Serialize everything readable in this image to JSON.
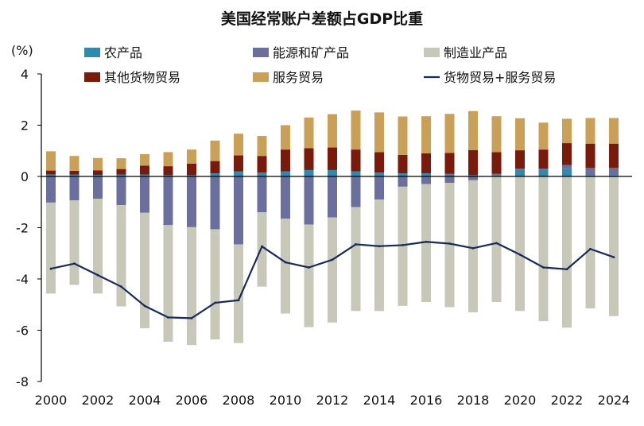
{
  "chart_data": {
    "type": "bar",
    "title": "美国经常账户差额占GDP比重",
    "ylabel": "(%)",
    "xlabel": "",
    "ylim": [
      -8,
      4
    ],
    "y_ticks": [
      "4",
      "2",
      "0",
      "-2",
      "-4",
      "-6",
      "-8"
    ],
    "y_tick_values": [
      4,
      2,
      0,
      -2,
      -4,
      -6,
      -8
    ],
    "x_tick_labels": [
      "2000",
      "2002",
      "2004",
      "2006",
      "2008",
      "2010",
      "2012",
      "2014",
      "2016",
      "2018",
      "2020",
      "2022",
      "2024"
    ],
    "grid": false,
    "legend_position": "top",
    "categories": [
      "2000",
      "2001",
      "2002",
      "2003",
      "2004",
      "2005",
      "2006",
      "2007",
      "2008",
      "2009",
      "2010",
      "2011",
      "2012",
      "2013",
      "2014",
      "2015",
      "2016",
      "2017",
      "2018",
      "2019",
      "2020",
      "2021",
      "2022",
      "2023",
      "2024"
    ],
    "series": [
      {
        "name": "农产品",
        "color": "#2e8bad",
        "kind": "bar",
        "values": [
          0.08,
          0.07,
          0.06,
          0.07,
          0.07,
          0.05,
          0.05,
          0.12,
          0.2,
          0.15,
          0.2,
          0.25,
          0.25,
          0.2,
          0.15,
          0.12,
          0.12,
          0.1,
          0.05,
          0.05,
          0.25,
          0.25,
          0.3,
          0.05,
          0.05
        ]
      },
      {
        "name": "能源和矿产品",
        "color": "#6b6f9e",
        "kind": "bar",
        "values": [
          -1.02,
          -0.93,
          -0.87,
          -1.12,
          -1.42,
          -1.9,
          -1.98,
          -2.06,
          -2.65,
          -1.4,
          -1.65,
          -1.88,
          -1.6,
          -1.2,
          -0.9,
          -0.4,
          -0.3,
          -0.25,
          -0.15,
          0.05,
          0.05,
          0.05,
          0.15,
          0.28,
          0.28
        ]
      },
      {
        "name": "制造业产品",
        "color": "#c8c8b9",
        "kind": "bar",
        "values": [
          -3.55,
          -3.3,
          -3.7,
          -3.95,
          -4.5,
          -4.55,
          -4.6,
          -4.3,
          -3.85,
          -2.9,
          -3.7,
          -4.0,
          -4.1,
          -4.05,
          -4.35,
          -4.65,
          -4.6,
          -4.85,
          -5.15,
          -4.9,
          -5.25,
          -5.65,
          -5.9,
          -5.15,
          -5.45
        ]
      },
      {
        "name": "其他货物贸易",
        "color": "#7a1a0a",
        "kind": "bar",
        "values": [
          0.15,
          0.15,
          0.18,
          0.22,
          0.35,
          0.35,
          0.45,
          0.48,
          0.62,
          0.65,
          0.85,
          0.85,
          0.88,
          0.85,
          0.8,
          0.72,
          0.78,
          0.82,
          0.98,
          0.85,
          0.72,
          0.75,
          0.85,
          0.95,
          0.95
        ]
      },
      {
        "name": "服务贸易",
        "color": "#c9a055",
        "kind": "bar",
        "values": [
          0.75,
          0.58,
          0.48,
          0.42,
          0.45,
          0.55,
          0.55,
          0.8,
          0.85,
          0.78,
          0.95,
          1.2,
          1.3,
          1.52,
          1.55,
          1.5,
          1.45,
          1.52,
          1.52,
          1.4,
          1.25,
          1.05,
          0.95,
          1.0,
          1.0
        ]
      },
      {
        "name": "货物贸易+服务贸易",
        "color": "#1b2a5c",
        "kind": "line",
        "values": [
          -3.6,
          -3.4,
          -3.85,
          -4.3,
          -5.05,
          -5.5,
          -5.53,
          -4.93,
          -4.83,
          -2.73,
          -3.35,
          -3.55,
          -3.25,
          -2.65,
          -2.72,
          -2.68,
          -2.55,
          -2.62,
          -2.8,
          -2.6,
          -3.05,
          -3.55,
          -3.62,
          -2.83,
          -3.15
        ]
      }
    ]
  }
}
